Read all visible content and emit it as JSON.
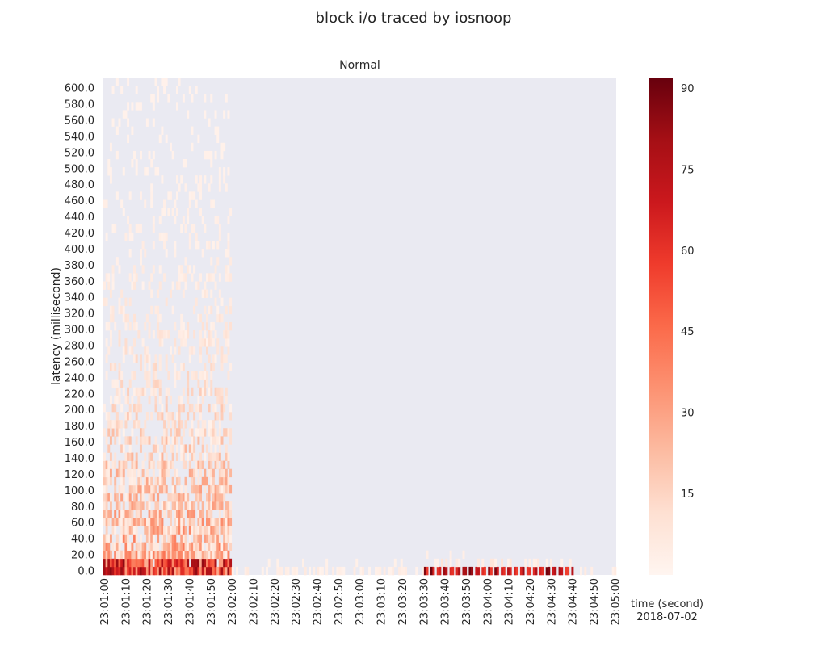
{
  "figure": {
    "suptitle": "block i/o traced by iosnoop",
    "axes_title": "Normal",
    "xlabel": "time (second)",
    "date": "2018-07-02"
  },
  "chart_data": {
    "type": "heatmap",
    "title": "Normal",
    "xlabel": "time (second)",
    "ylabel": "latency (millisecond)",
    "colormap": "Reds",
    "colorbar_range": [
      0,
      92
    ],
    "colorbar_ticks": [
      15,
      30,
      45,
      60,
      75,
      90
    ],
    "x_range": [
      "23:01:00",
      "23:05:00"
    ],
    "y_range": [
      0,
      610
    ],
    "x_tick_labels": [
      "23:01:00",
      "23:01:10",
      "23:01:20",
      "23:01:30",
      "23:01:40",
      "23:01:50",
      "23:02:00",
      "23:02:10",
      "23:02:20",
      "23:02:30",
      "23:02:40",
      "23:02:50",
      "23:03:00",
      "23:03:10",
      "23:03:20",
      "23:03:30",
      "23:03:40",
      "23:03:50",
      "23:04:00",
      "23:04:10",
      "23:04:20",
      "23:04:30",
      "23:04:40",
      "23:04:50",
      "23:05:00"
    ],
    "y_tick_labels": [
      "0.0",
      "20.0",
      "40.0",
      "60.0",
      "80.0",
      "100.0",
      "120.0",
      "140.0",
      "160.0",
      "180.0",
      "200.0",
      "220.0",
      "240.0",
      "260.0",
      "280.0",
      "300.0",
      "320.0",
      "340.0",
      "360.0",
      "380.0",
      "400.0",
      "420.0",
      "440.0",
      "460.0",
      "480.0",
      "500.0",
      "520.0",
      "540.0",
      "560.0",
      "580.0",
      "600.0"
    ],
    "regions": [
      {
        "time_start": "23:01:00",
        "time_end": "23:02:00",
        "latency_max": 610,
        "level": "high"
      },
      {
        "time_start": "23:02:00",
        "time_end": "23:03:30",
        "latency_max": 10,
        "level": "low"
      },
      {
        "time_start": "23:03:30",
        "time_end": "23:04:40",
        "latency_max": 20,
        "level": "high",
        "note": "dark red bands at 0-10 ms"
      },
      {
        "time_start": "23:04:40",
        "time_end": "23:05:00",
        "latency_max": 10,
        "level": "low"
      }
    ]
  }
}
